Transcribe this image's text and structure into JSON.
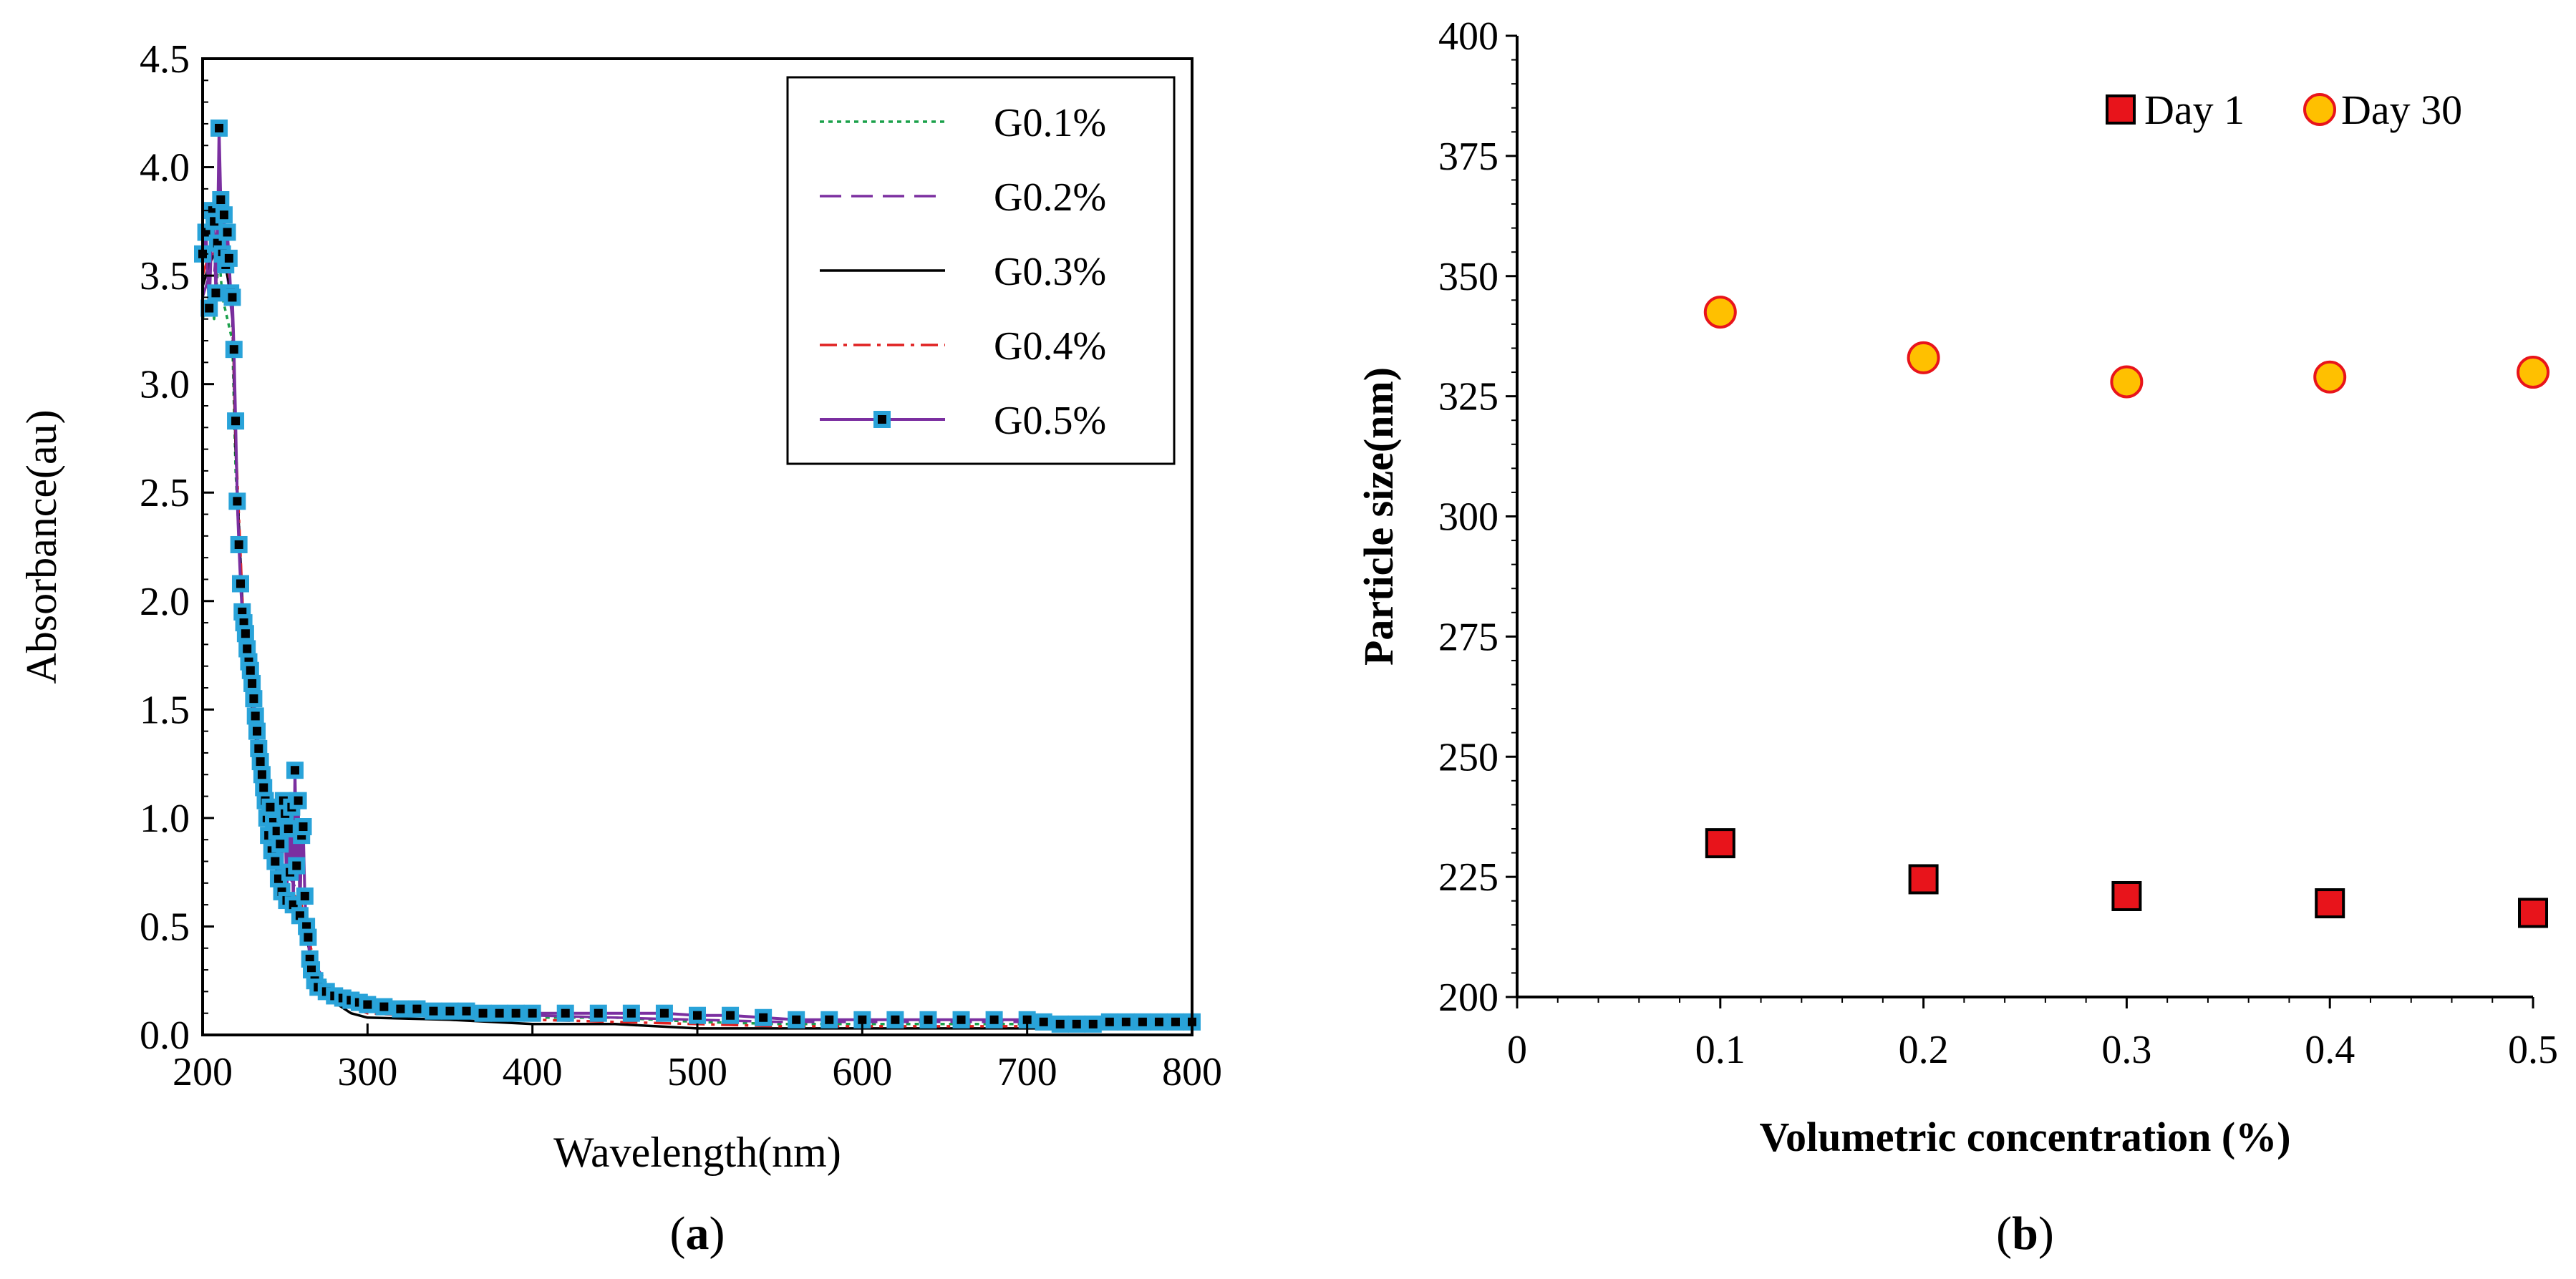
{
  "chart_data": [
    {
      "type": "line",
      "panel_label": "(a)",
      "panel_letter": "a",
      "xlabel": "Wavelength(nm)",
      "ylabel": "Absorbance(au)",
      "xlim": [
        200,
        800
      ],
      "ylim": [
        0,
        4.5
      ],
      "x_ticks": [
        "200",
        "300",
        "400",
        "500",
        "600",
        "700",
        "800"
      ],
      "y_ticks": [
        "0.0",
        "0.5",
        "1.0",
        "1.5",
        "2.0",
        "2.5",
        "3.0",
        "3.5",
        "4.0",
        "4.5"
      ],
      "legend_position": "top-right",
      "series": [
        {
          "name": "G0.1%",
          "color": "#1aa04a",
          "line_style": "dotted",
          "x": [
            200,
            204,
            207,
            210,
            212,
            215,
            218,
            220,
            225,
            230,
            235,
            240,
            245,
            250,
            255,
            260,
            265,
            270,
            280,
            290,
            300,
            350,
            400,
            450,
            500,
            550,
            600,
            650,
            700,
            720,
            750,
            800
          ],
          "y": [
            3.3,
            3.4,
            3.3,
            3.6,
            3.4,
            3.3,
            3.2,
            2.6,
            1.8,
            1.5,
            1.2,
            0.95,
            0.8,
            0.7,
            0.65,
            0.55,
            0.4,
            0.28,
            0.2,
            0.15,
            0.12,
            0.09,
            0.08,
            0.08,
            0.06,
            0.05,
            0.05,
            0.05,
            0.05,
            0.04,
            0.05,
            0.05
          ]
        },
        {
          "name": "G0.2%",
          "color": "#7b2fa0",
          "line_style": "dashed",
          "x": [
            200,
            204,
            207,
            210,
            212,
            215,
            218,
            220,
            225,
            230,
            235,
            240,
            245,
            250,
            255,
            260,
            265,
            270,
            280,
            290,
            300,
            350,
            400,
            450,
            500,
            550,
            600,
            650,
            700,
            720,
            750,
            800
          ],
          "y": [
            3.4,
            3.5,
            3.5,
            3.8,
            3.6,
            3.5,
            3.3,
            2.7,
            1.85,
            1.55,
            1.25,
            1.0,
            0.85,
            0.75,
            0.7,
            0.6,
            0.42,
            0.3,
            0.2,
            0.15,
            0.12,
            0.1,
            0.09,
            0.08,
            0.07,
            0.06,
            0.06,
            0.06,
            0.06,
            0.05,
            0.05,
            0.06
          ]
        },
        {
          "name": "G0.3%",
          "color": "#000000",
          "line_style": "solid",
          "x": [
            200,
            204,
            207,
            210,
            212,
            215,
            218,
            220,
            225,
            230,
            235,
            240,
            245,
            250,
            255,
            260,
            265,
            270,
            280,
            290,
            300,
            350,
            400,
            450,
            500,
            550,
            600,
            650,
            700,
            720,
            750,
            800
          ],
          "y": [
            3.45,
            3.55,
            3.6,
            3.7,
            3.6,
            3.5,
            3.4,
            2.7,
            1.8,
            1.5,
            1.2,
            0.95,
            0.75,
            0.65,
            0.6,
            0.55,
            0.38,
            0.25,
            0.15,
            0.1,
            0.08,
            0.07,
            0.05,
            0.05,
            0.03,
            0.03,
            0.03,
            0.03,
            0.03,
            0.03,
            0.04,
            0.04
          ]
        },
        {
          "name": "G0.4%",
          "color": "#e02020",
          "line_style": "dash-dot",
          "x": [
            200,
            204,
            207,
            210,
            212,
            215,
            218,
            220,
            225,
            230,
            235,
            240,
            245,
            250,
            255,
            260,
            265,
            270,
            280,
            290,
            300,
            350,
            400,
            450,
            500,
            550,
            600,
            650,
            700,
            720,
            750,
            800
          ],
          "y": [
            3.5,
            3.6,
            3.6,
            3.75,
            3.65,
            3.55,
            3.4,
            2.75,
            1.85,
            1.55,
            1.25,
            1.0,
            0.8,
            0.7,
            0.65,
            0.6,
            0.42,
            0.28,
            0.18,
            0.13,
            0.1,
            0.08,
            0.07,
            0.06,
            0.05,
            0.04,
            0.04,
            0.04,
            0.04,
            0.03,
            0.04,
            0.05
          ]
        },
        {
          "name": "G0.5%",
          "color": "#7b2fa0",
          "marker_color": "#29a3d9",
          "line_style": "solid-marker",
          "x": [
            200,
            202,
            204,
            206,
            207,
            208,
            209,
            210,
            211,
            212,
            213,
            214,
            215,
            216,
            217,
            218,
            219,
            220,
            221,
            222,
            223,
            224,
            225,
            226,
            227,
            228,
            229,
            230,
            231,
            232,
            233,
            234,
            235,
            236,
            237,
            238,
            239,
            240,
            241,
            242,
            243,
            244,
            245,
            246,
            247,
            248,
            249,
            250,
            251,
            252,
            253,
            254,
            255,
            256,
            257,
            258,
            259,
            260,
            261,
            262,
            263,
            264,
            265,
            266,
            268,
            270,
            275,
            280,
            285,
            290,
            295,
            300,
            310,
            320,
            330,
            340,
            350,
            360,
            370,
            380,
            390,
            400,
            420,
            440,
            460,
            480,
            500,
            520,
            540,
            560,
            580,
            600,
            620,
            640,
            660,
            680,
            700,
            710,
            720,
            730,
            740,
            750,
            760,
            770,
            780,
            790,
            800
          ],
          "y": [
            3.6,
            3.7,
            3.35,
            3.8,
            3.75,
            3.42,
            3.65,
            4.18,
            3.85,
            3.6,
            3.78,
            3.55,
            3.7,
            3.58,
            3.42,
            3.4,
            3.16,
            2.83,
            2.46,
            2.26,
            2.08,
            1.95,
            1.9,
            1.85,
            1.78,
            1.72,
            1.68,
            1.62,
            1.55,
            1.47,
            1.4,
            1.32,
            1.26,
            1.2,
            1.14,
            1.08,
            1.0,
            0.92,
            1.05,
            0.85,
            0.98,
            0.8,
            0.94,
            0.72,
            0.88,
            0.66,
            1.08,
            1.02,
            0.62,
            0.95,
            0.75,
            1.05,
            0.6,
            1.22,
            0.78,
            1.08,
            0.55,
            0.92,
            0.96,
            0.64,
            0.5,
            0.45,
            0.35,
            0.3,
            0.25,
            0.22,
            0.2,
            0.18,
            0.17,
            0.16,
            0.15,
            0.14,
            0.13,
            0.12,
            0.12,
            0.11,
            0.11,
            0.11,
            0.1,
            0.1,
            0.1,
            0.1,
            0.1,
            0.1,
            0.1,
            0.1,
            0.09,
            0.09,
            0.08,
            0.07,
            0.07,
            0.07,
            0.07,
            0.07,
            0.07,
            0.07,
            0.07,
            0.06,
            0.05,
            0.05,
            0.05,
            0.06,
            0.06,
            0.06,
            0.06,
            0.06,
            0.06
          ]
        }
      ]
    },
    {
      "type": "scatter",
      "panel_label": "(b)",
      "panel_letter": "b",
      "xlabel": "Volumetric concentration (%)",
      "ylabel": "Particle size(nm)",
      "xlim": [
        0,
        0.5
      ],
      "ylim": [
        200,
        400
      ],
      "x_ticks": [
        "0",
        "0.1",
        "0.2",
        "0.3",
        "0.4",
        "0.5"
      ],
      "y_ticks": [
        "200",
        "225",
        "250",
        "275",
        "300",
        "325",
        "350",
        "375",
        "400"
      ],
      "legend_position": "top-right",
      "series": [
        {
          "name": "Day 1",
          "marker": "square",
          "color": "#e8141b",
          "x": [
            0.1,
            0.2,
            0.3,
            0.4,
            0.5
          ],
          "y": [
            232,
            224.5,
            221,
            219.5,
            217.5
          ]
        },
        {
          "name": "Day 30",
          "marker": "circle",
          "color": "#ffc000",
          "x": [
            0.1,
            0.2,
            0.3,
            0.4,
            0.5
          ],
          "y": [
            342.5,
            333,
            328,
            329,
            330
          ]
        }
      ]
    }
  ]
}
